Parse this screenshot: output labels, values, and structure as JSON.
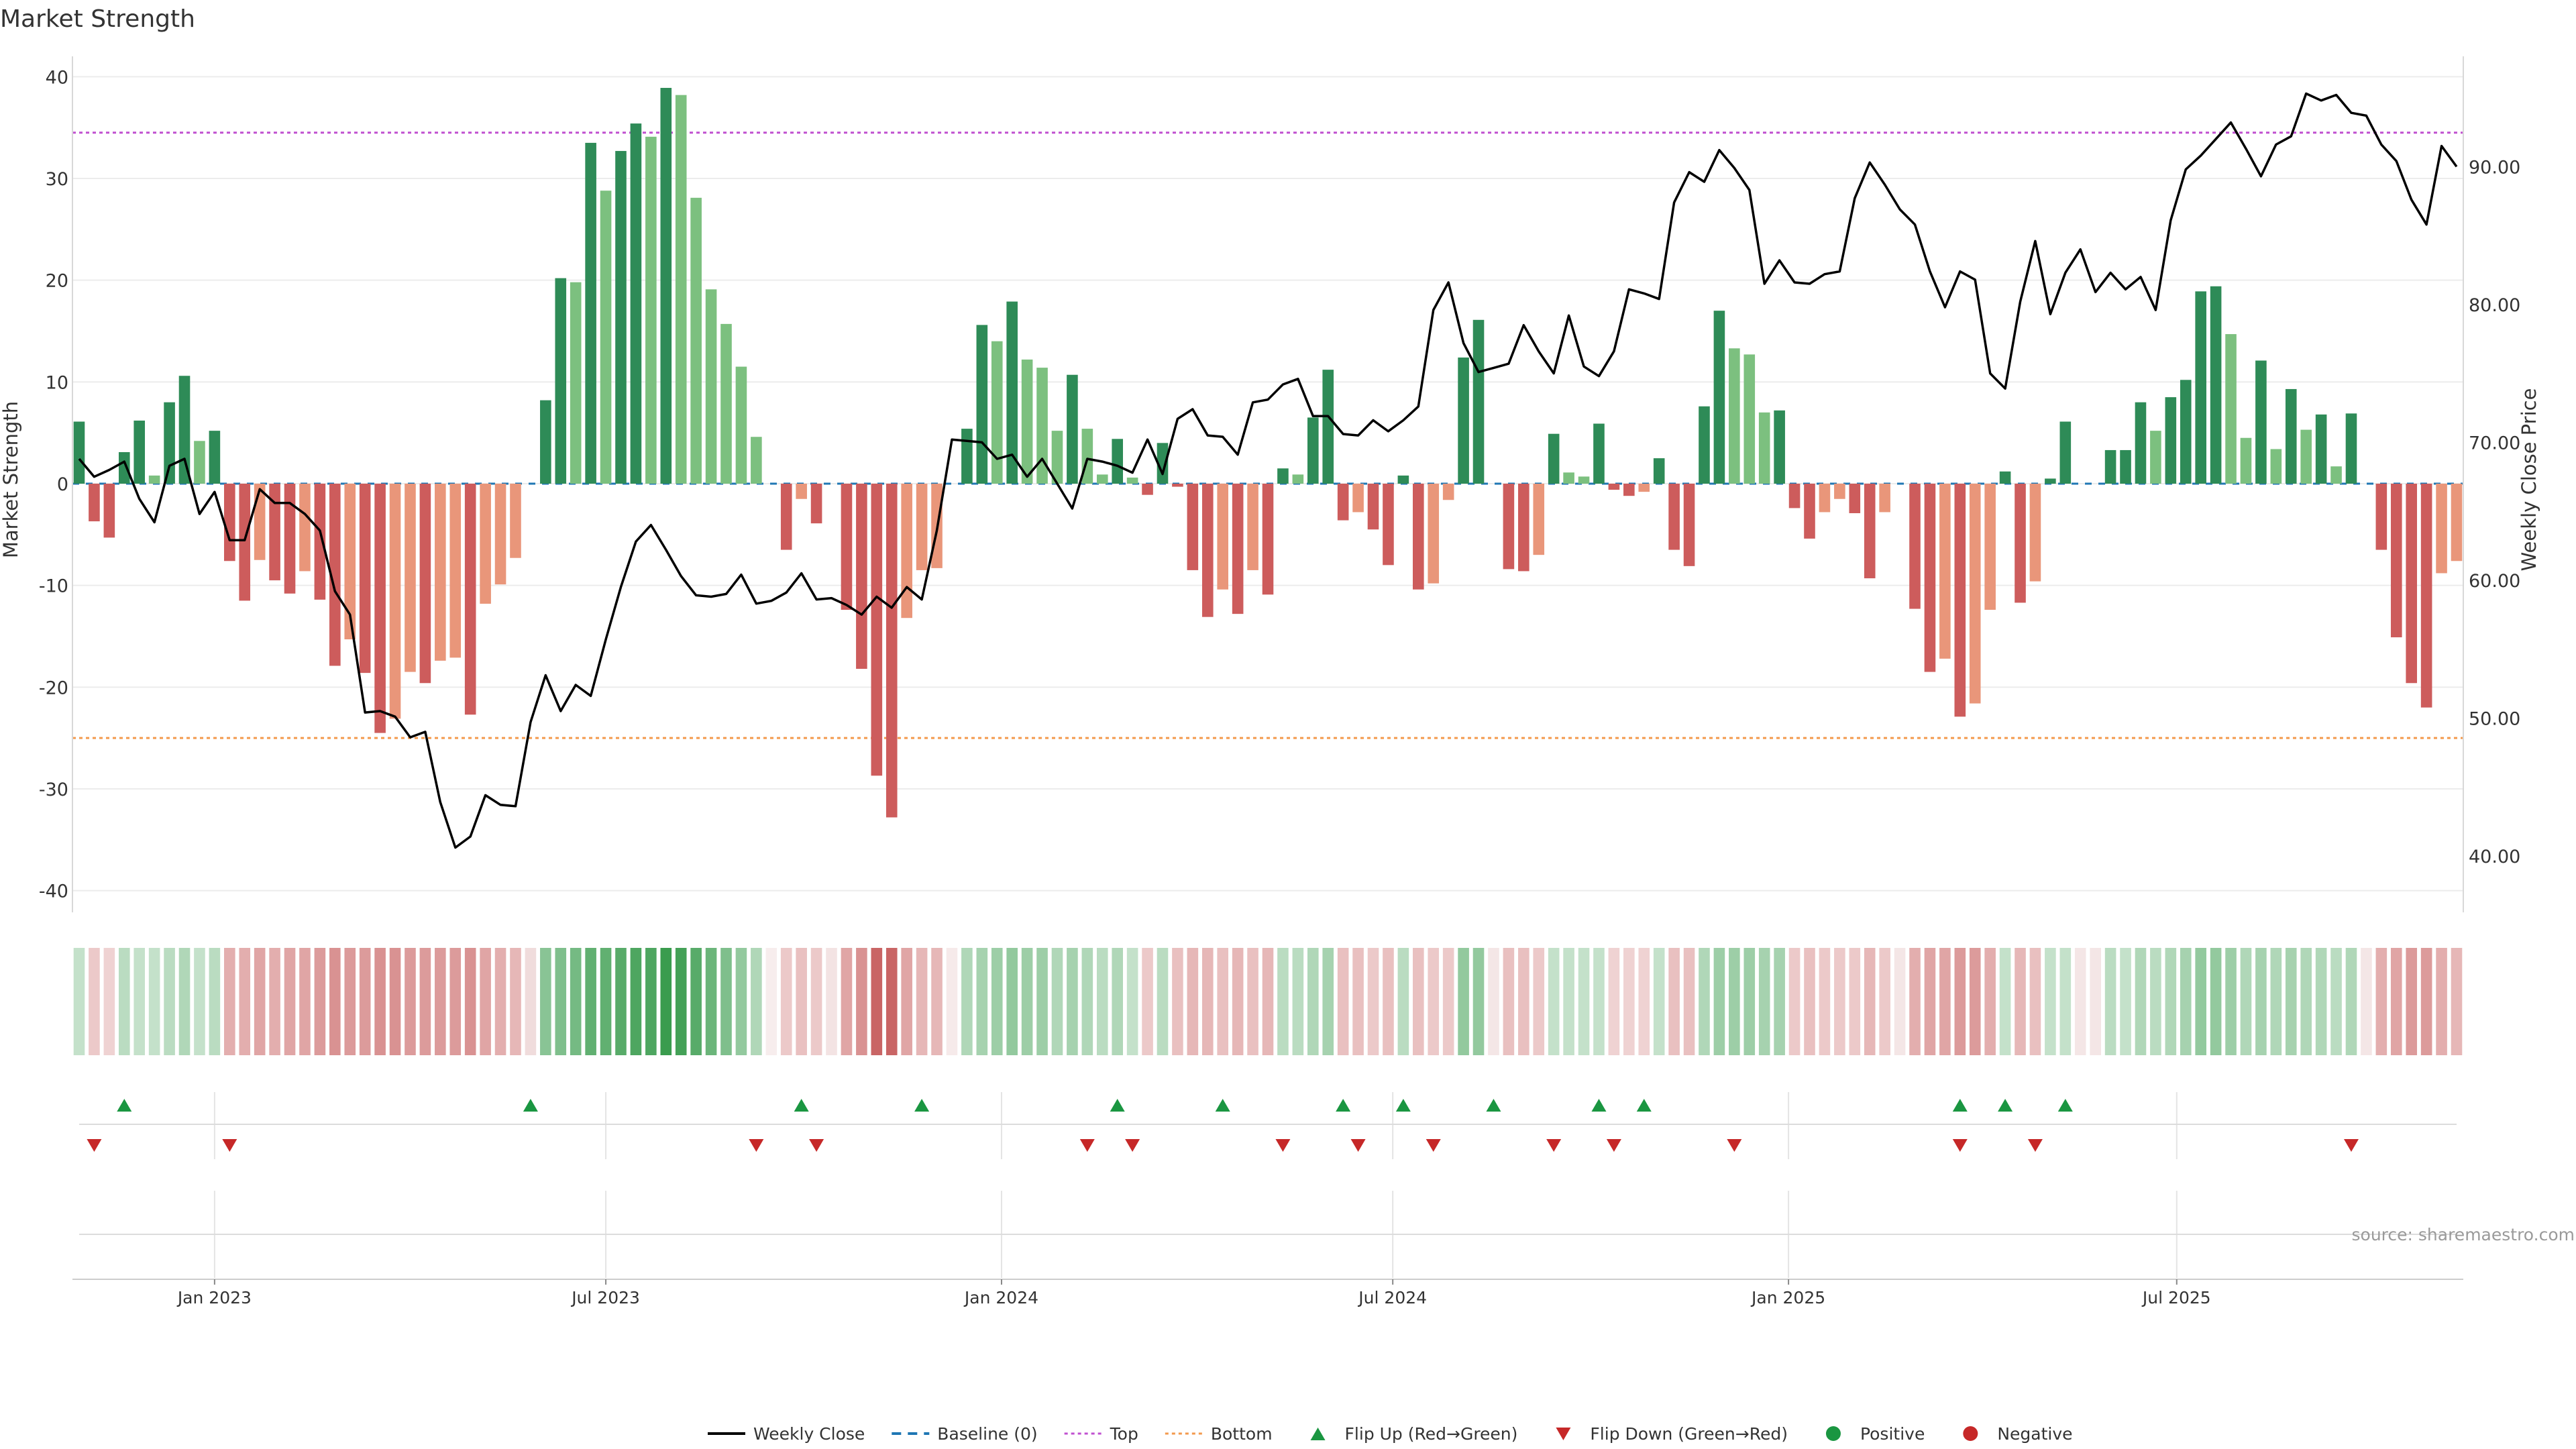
{
  "title": "Market Strength",
  "source": "source: sharemaestro.com",
  "colors": {
    "strong_green": "#2e8b57",
    "light_green": "#7cc07f",
    "strong_red": "#cd5c5c",
    "light_red": "#e9967a",
    "line": "#000000",
    "baseline": "#1f77b4",
    "top": "#c050d0",
    "bottom": "#f39a4e",
    "flip_up": "#1a9641",
    "flip_down": "#c62828",
    "grid": "#ececec"
  },
  "legend": [
    {
      "label": "Weekly Close",
      "kind": "line"
    },
    {
      "label": "Baseline (0)",
      "kind": "dash"
    },
    {
      "label": "Top",
      "kind": "dot-top"
    },
    {
      "label": "Bottom",
      "kind": "dot-bottom"
    },
    {
      "label": "Flip Up (Red→Green)",
      "kind": "tri-up"
    },
    {
      "label": "Flip Down (Green→Red)",
      "kind": "tri-down"
    },
    {
      "label": "Positive",
      "kind": "circle-pos"
    },
    {
      "label": "Negative",
      "kind": "circle-neg"
    }
  ],
  "chart_data": {
    "type": "bar",
    "title": "Market Strength",
    "ylabel": "Market Strength",
    "y2label": "Weekly Close Price",
    "ylim": [
      -42,
      42
    ],
    "y2lim": [
      36,
      98
    ],
    "yticks": [
      -40,
      -30,
      -20,
      -10,
      0,
      10,
      20,
      30,
      40
    ],
    "y2ticks": [
      "40.00",
      "50.00",
      "60.00",
      "70.00",
      "80.00",
      "90.00"
    ],
    "xticks": [
      {
        "label": "Jan 2023",
        "week": 9
      },
      {
        "label": "Jul 2023",
        "week": 35
      },
      {
        "label": "Jan 2024",
        "week": 61.3
      },
      {
        "label": "Jul 2024",
        "week": 87.3
      },
      {
        "label": "Jan 2025",
        "week": 113.6
      },
      {
        "label": "Jul 2025",
        "week": 139.4
      }
    ],
    "top_line": 34.5,
    "bottom_line": -25,
    "baseline": 0,
    "strength": [
      6.1,
      -3.7,
      -5.3,
      3.1,
      6.2,
      0.8,
      8.0,
      10.6,
      4.2,
      5.2,
      -7.6,
      -11.5,
      -7.5,
      -9.5,
      -10.8,
      -8.6,
      -11.4,
      -17.9,
      -15.3,
      -18.6,
      -24.5,
      -23.1,
      -18.5,
      -19.6,
      -17.4,
      -17.1,
      -22.7,
      -11.8,
      -9.9,
      -7.3,
      0,
      8.2,
      20.2,
      19.8,
      33.5,
      28.8,
      32.7,
      35.4,
      34.1,
      38.9,
      38.2,
      28.1,
      19.1,
      15.7,
      11.5,
      4.6,
      0,
      -6.5,
      -1.5,
      -3.9,
      0,
      -12.4,
      -18.2,
      -28.7,
      -32.8,
      -13.2,
      -8.5,
      -8.3,
      0,
      5.4,
      15.6,
      14.0,
      17.9,
      12.2,
      11.4,
      5.2,
      10.7,
      5.4,
      0.9,
      4.4,
      0.6,
      -1.1,
      4.0,
      -0.3,
      -8.5,
      -13.1,
      -10.4,
      -12.8,
      -8.5,
      -10.9,
      1.5,
      0.9,
      6.5,
      11.2,
      -3.6,
      -2.8,
      -4.5,
      -8.0,
      0.8,
      -10.4,
      -9.8,
      -1.6,
      12.4,
      16.1,
      0,
      -8.4,
      -8.6,
      -7.0,
      4.9,
      1.1,
      0.7,
      5.9,
      -0.6,
      -1.2,
      -0.8,
      2.5,
      -6.5,
      -8.1,
      7.6,
      17.0,
      13.3,
      12.7,
      7.0,
      7.2,
      -2.4,
      -5.4,
      -2.8,
      -1.5,
      -2.9,
      -9.3,
      -2.8,
      0,
      -12.3,
      -18.5,
      -17.2,
      -22.9,
      -21.6,
      -12.4,
      1.2,
      -11.7,
      -9.6,
      0.5,
      6.1,
      0,
      0,
      3.3,
      3.3,
      8.0,
      5.2,
      8.5,
      10.2,
      18.9,
      19.4,
      14.7,
      4.5,
      12.1,
      3.4,
      9.3,
      5.3,
      6.8,
      1.7,
      6.9,
      0,
      -6.5,
      -15.1,
      -19.6,
      -22.0,
      -8.8,
      -7.6
    ],
    "intensity": [
      0.3,
      0.3,
      0.25,
      0.35,
      0.3,
      0.3,
      0.35,
      0.4,
      0.3,
      0.35,
      0.45,
      0.45,
      0.5,
      0.45,
      0.5,
      0.5,
      0.55,
      0.6,
      0.55,
      0.55,
      0.6,
      0.6,
      0.55,
      0.55,
      0.55,
      0.55,
      0.6,
      0.5,
      0.45,
      0.4,
      0.5,
      0.6,
      0.65,
      0.7,
      0.8,
      0.8,
      0.85,
      0.9,
      0.9,
      1.0,
      0.95,
      0.85,
      0.75,
      0.65,
      0.55,
      0.4,
      0.25,
      0.3,
      0.35,
      0.3,
      0.4,
      0.5,
      0.6,
      0.85,
      0.85,
      0.5,
      0.4,
      0.4,
      0.3,
      0.4,
      0.45,
      0.5,
      0.55,
      0.5,
      0.5,
      0.4,
      0.45,
      0.4,
      0.35,
      0.4,
      0.3,
      0.3,
      0.35,
      0.35,
      0.4,
      0.4,
      0.35,
      0.4,
      0.35,
      0.4,
      0.35,
      0.35,
      0.4,
      0.45,
      0.35,
      0.35,
      0.3,
      0.35,
      0.35,
      0.35,
      0.3,
      0.3,
      0.55,
      0.55,
      0.35,
      0.35,
      0.35,
      0.3,
      0.3,
      0.3,
      0.3,
      0.3,
      0.25,
      0.25,
      0.25,
      0.3,
      0.35,
      0.35,
      0.4,
      0.5,
      0.5,
      0.5,
      0.45,
      0.45,
      0.3,
      0.35,
      0.3,
      0.3,
      0.3,
      0.4,
      0.3,
      0.35,
      0.45,
      0.5,
      0.5,
      0.55,
      0.55,
      0.45,
      0.3,
      0.4,
      0.35,
      0.3,
      0.3,
      0.35,
      0.35,
      0.35,
      0.3,
      0.4,
      0.35,
      0.4,
      0.45,
      0.55,
      0.55,
      0.5,
      0.4,
      0.45,
      0.4,
      0.45,
      0.4,
      0.4,
      0.35,
      0.4,
      0.35,
      0.45,
      0.5,
      0.55,
      0.55,
      0.45,
      0.4
    ],
    "close": [
      68.8,
      67.5,
      68.0,
      68.6,
      65.9,
      64.2,
      68.3,
      68.8,
      64.8,
      66.4,
      62.9,
      62.9,
      66.6,
      65.6,
      65.6,
      64.8,
      63.6,
      59.2,
      57.5,
      50.4,
      50.5,
      50.1,
      48.6,
      49.0,
      43.9,
      40.6,
      41.4,
      44.4,
      43.7,
      43.6,
      49.7,
      53.1,
      50.5,
      52.4,
      51.6,
      55.7,
      59.5,
      62.8,
      64.0,
      62.2,
      60.3,
      58.9,
      58.8,
      59.0,
      60.4,
      58.3,
      58.5,
      59.1,
      60.5,
      58.6,
      58.7,
      58.2,
      57.5,
      58.8,
      58.0,
      59.5,
      58.6,
      63.6,
      70.2,
      70.1,
      70.0,
      68.8,
      69.1,
      67.5,
      68.8,
      67.0,
      65.2,
      68.8,
      68.6,
      68.3,
      67.8,
      70.2,
      67.7,
      71.7,
      72.4,
      70.5,
      70.4,
      69.1,
      72.9,
      73.1,
      74.2,
      74.6,
      71.9,
      71.9,
      70.6,
      70.5,
      71.6,
      70.8,
      71.6,
      72.6,
      79.6,
      81.6,
      77.2,
      75.1,
      75.4,
      75.7,
      78.5,
      76.6,
      75.0,
      79.2,
      75.5,
      74.8,
      76.6,
      81.1,
      80.8,
      80.4,
      87.4,
      89.6,
      88.9,
      91.2,
      89.9,
      88.3,
      81.5,
      83.2,
      81.6,
      81.5,
      82.2,
      82.4,
      87.7,
      90.3,
      88.7,
      86.9,
      85.8,
      82.4,
      79.8,
      82.4,
      81.8,
      75.0,
      73.9,
      80.2,
      84.6,
      79.3,
      82.3,
      84.0,
      80.9,
      82.3,
      81.1,
      82.0,
      79.6,
      86.1,
      89.8,
      90.8,
      92.0,
      93.2,
      91.3,
      89.3,
      91.6,
      92.2,
      95.3,
      94.8,
      95.2,
      93.9,
      93.7,
      91.6,
      90.4,
      87.6,
      85.8,
      91.5,
      90.0
    ],
    "flip_up_weeks": [
      3,
      30,
      48,
      56,
      69,
      76,
      84,
      88,
      94,
      101,
      104,
      125,
      128,
      132
    ],
    "flip_down_weeks": [
      1,
      10,
      45,
      49,
      67,
      70,
      80,
      85,
      90,
      98,
      102,
      110,
      125,
      130,
      151
    ]
  }
}
